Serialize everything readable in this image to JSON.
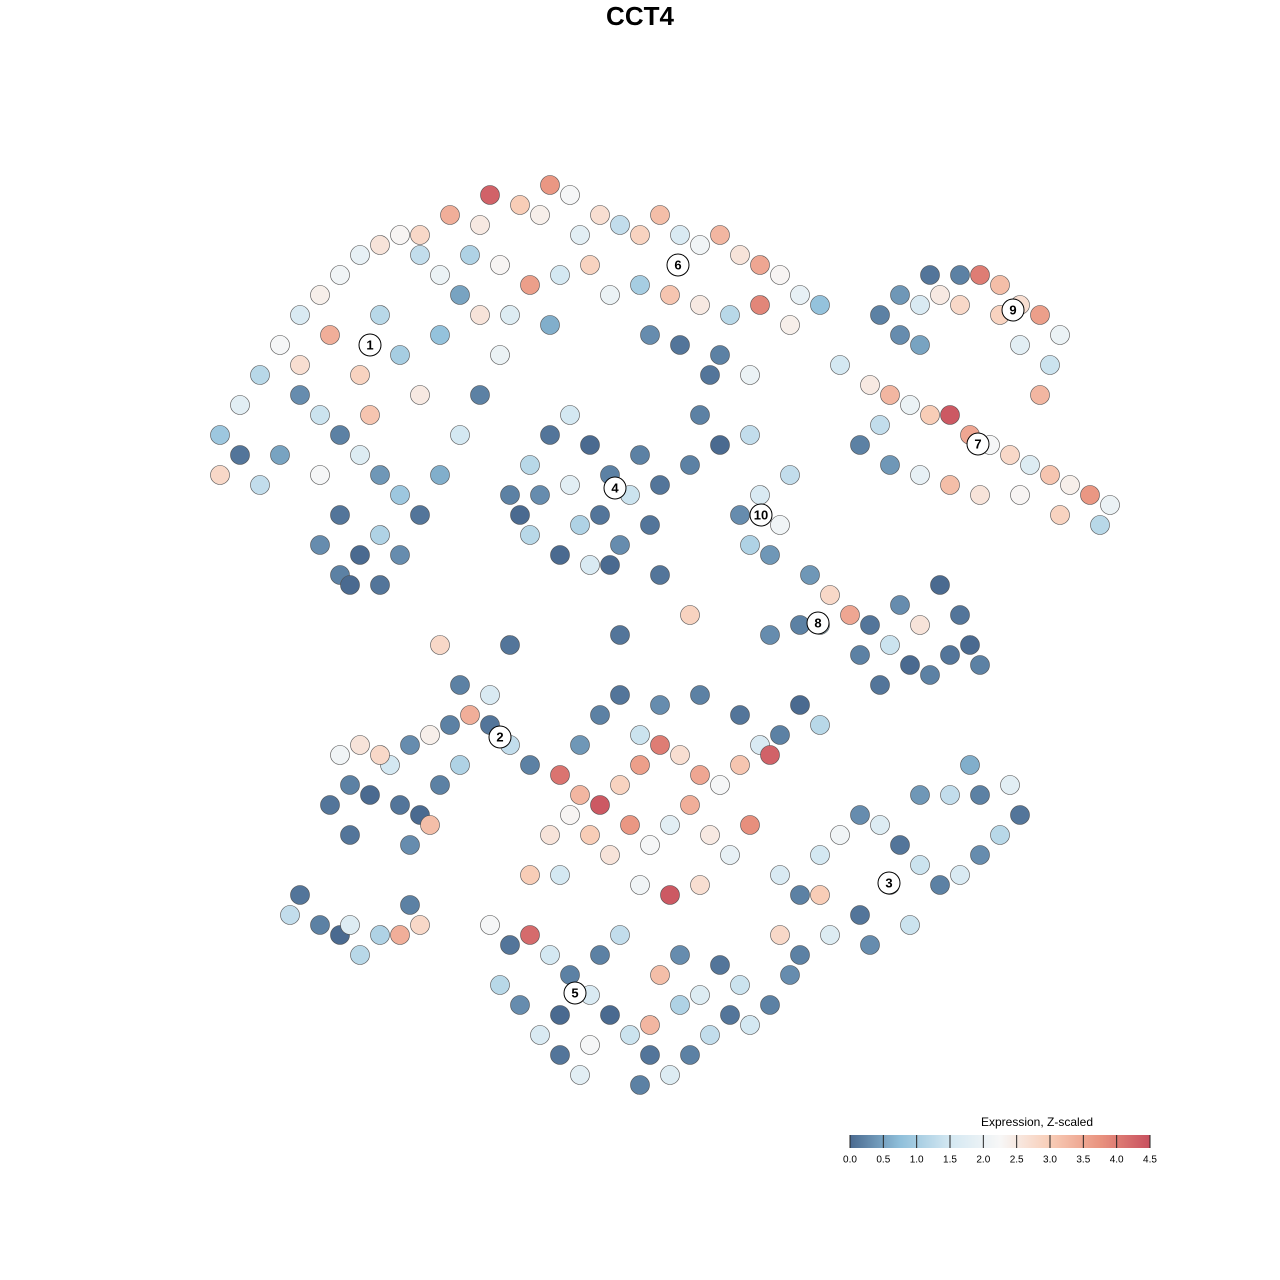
{
  "chart_data": {
    "type": "scatter",
    "title": "CCT4",
    "xlim": [
      0,
      93
    ],
    "ylim": [
      0,
      91.5
    ],
    "x": [
      2,
      4,
      6,
      8,
      10,
      12,
      14,
      16,
      18,
      20,
      22,
      24,
      26,
      10,
      12,
      14,
      16,
      18,
      20,
      22,
      24,
      26,
      28,
      30,
      14,
      12,
      14,
      16,
      18,
      20,
      12,
      8,
      6,
      10,
      16,
      20,
      22,
      18,
      24,
      28,
      2,
      4,
      17,
      13,
      15,
      18,
      22,
      25,
      28,
      29,
      32,
      34,
      35,
      37,
      38,
      40,
      42,
      44,
      46,
      48,
      50,
      52,
      54,
      56,
      58,
      60,
      62,
      30,
      33,
      36,
      39,
      41,
      44,
      47,
      50,
      53,
      56,
      59,
      31,
      35,
      45,
      48,
      52,
      55,
      27,
      31,
      33,
      35,
      37,
      39,
      41,
      43,
      45,
      42,
      39,
      36,
      33,
      34,
      37,
      40,
      44,
      38,
      32,
      46,
      49,
      52,
      55,
      50,
      51,
      54,
      56,
      58,
      55,
      57,
      59,
      68,
      70,
      72,
      74,
      76,
      78,
      80,
      82,
      84,
      86,
      85,
      84,
      70,
      73,
      76,
      80,
      82,
      72,
      64,
      67,
      69,
      71,
      73,
      75,
      77,
      79,
      81,
      83,
      85,
      87,
      89,
      91,
      78,
      75,
      72,
      69,
      66,
      68,
      82,
      86,
      90,
      61,
      63,
      65,
      67,
      69,
      71,
      73,
      75,
      77,
      78,
      70,
      72,
      76,
      62,
      66,
      68,
      74,
      60,
      57,
      24,
      31,
      41,
      42,
      46,
      49,
      13,
      15,
      17,
      19,
      21,
      23,
      25,
      27,
      29,
      31,
      33,
      16,
      18,
      14,
      20,
      22,
      24,
      26,
      21,
      23,
      15,
      26,
      29,
      36,
      38,
      40,
      42,
      44,
      46,
      48,
      50,
      52,
      54,
      56,
      57,
      37,
      39,
      41,
      43,
      45,
      47,
      49,
      51,
      53,
      55,
      47,
      44,
      50,
      40,
      42,
      46,
      50,
      54,
      58,
      60,
      62,
      38,
      44,
      35,
      33,
      36,
      58,
      60,
      62,
      64,
      66,
      68,
      70,
      72,
      74,
      76,
      78,
      80,
      82,
      81,
      78,
      75,
      72,
      69,
      66,
      63,
      60,
      67,
      71,
      62,
      58,
      59,
      77,
      29,
      31,
      33,
      35,
      37,
      39,
      41,
      43,
      45,
      44,
      47,
      49,
      51,
      53,
      55,
      57,
      30,
      32,
      34,
      36,
      38,
      40,
      42,
      46,
      48,
      50,
      52,
      54,
      45,
      39,
      36,
      48,
      9,
      10,
      12,
      14,
      15,
      16,
      18,
      20,
      22,
      21
    ],
    "y": [
      66,
      69,
      72,
      75,
      78,
      80,
      82,
      84,
      85,
      86,
      84,
      82,
      80,
      70,
      68,
      66,
      64,
      62,
      60,
      58,
      62,
      66,
      70,
      74,
      58,
      55,
      52,
      54,
      56,
      54,
      62,
      64,
      61,
      73,
      72,
      74,
      70,
      78,
      76,
      78,
      62,
      64,
      68,
      76,
      51,
      51,
      86,
      88,
      87,
      90,
      89,
      88,
      91,
      90,
      86,
      88,
      87,
      86,
      88,
      86,
      85,
      86,
      84,
      83,
      82,
      80,
      79,
      83,
      81,
      82,
      83,
      80,
      81,
      80,
      79,
      78,
      79,
      77,
      78,
      77,
      76,
      75,
      74,
      72,
      84,
      60,
      63,
      66,
      68,
      65,
      62,
      60,
      57,
      55,
      53,
      54,
      56,
      60,
      61,
      58,
      64,
      57,
      58,
      61,
      63,
      65,
      66,
      68,
      72,
      58,
      60,
      57,
      55,
      54,
      62,
      78,
      80,
      79,
      80,
      79,
      82,
      81,
      79,
      78,
      76,
      73,
      70,
      76,
      82,
      82,
      78,
      75,
      75,
      73,
      71,
      70,
      69,
      68,
      68,
      66,
      65,
      64,
      63,
      62,
      61,
      60,
      59,
      60,
      61,
      62,
      63,
      65,
      67,
      60,
      58,
      57,
      52,
      50,
      48,
      47,
      45,
      43,
      42,
      44,
      45,
      43,
      49,
      47,
      48,
      47,
      44,
      41,
      51,
      47,
      46,
      45,
      45,
      53,
      46,
      52,
      48,
      29,
      31,
      30,
      33,
      35,
      36,
      37,
      38,
      37,
      35,
      33,
      35,
      34,
      34,
      29,
      28,
      31,
      33,
      25,
      27,
      26,
      41,
      40,
      32,
      30,
      29,
      31,
      33,
      35,
      34,
      32,
      31,
      33,
      35,
      34,
      28,
      26,
      24,
      27,
      25,
      27,
      29,
      26,
      24,
      27,
      20,
      21,
      21,
      38,
      40,
      39,
      40,
      38,
      36,
      39,
      37,
      35,
      36,
      26,
      22,
      22,
      22,
      20,
      24,
      26,
      28,
      27,
      25,
      23,
      21,
      22,
      24,
      26,
      28,
      31,
      30,
      30,
      30,
      21,
      18,
      16,
      14,
      15,
      17,
      20,
      16,
      12,
      33,
      17,
      15,
      16,
      14,
      12,
      10,
      8,
      6,
      4,
      1,
      2,
      4,
      6,
      8,
      7,
      9,
      11,
      9,
      6,
      4,
      2,
      14,
      16,
      12,
      14,
      10,
      13,
      11,
      7,
      5,
      8,
      9,
      18,
      20,
      17,
      16,
      17,
      14,
      16,
      16,
      17,
      19
    ],
    "values": [
      0.9,
      1.8,
      1.2,
      2.2,
      1.6,
      2.4,
      2.1,
      1.9,
      2.6,
      2.3,
      1.3,
      2.0,
      0.5,
      0.3,
      1.4,
      0.2,
      1.7,
      0.4,
      0.9,
      0.1,
      0.6,
      1.5,
      0.2,
      2.0,
      0.1,
      0.3,
      0.2,
      0.0,
      1.1,
      0.3,
      2.2,
      0.5,
      1.3,
      2.7,
      2.9,
      1.0,
      2.5,
      1.2,
      0.8,
      2.6,
      2.8,
      0.1,
      3.1,
      3.4,
      0.0,
      0.1,
      2.8,
      3.4,
      2.5,
      4.3,
      3.0,
      2.4,
      3.7,
      2.2,
      1.8,
      2.7,
      1.3,
      2.9,
      3.2,
      1.6,
      2.1,
      3.3,
      2.6,
      3.5,
      2.3,
      1.9,
      0.8,
      2.3,
      3.6,
      1.5,
      2.9,
      2.0,
      1.0,
      3.1,
      2.5,
      1.2,
      3.9,
      2.4,
      1.7,
      0.6,
      0.3,
      0.1,
      0.2,
      2.0,
      1.1,
      0.2,
      1.2,
      0.1,
      1.5,
      0.0,
      0.2,
      1.4,
      0.1,
      0.3,
      1.6,
      0.0,
      1.2,
      0.3,
      1.8,
      0.1,
      0.2,
      1.1,
      0.0,
      0.1,
      0.2,
      0.0,
      1.3,
      0.2,
      0.1,
      0.3,
      1.6,
      2.1,
      1.1,
      0.4,
      1.3,
      0.2,
      0.4,
      1.6,
      2.5,
      2.8,
      4.0,
      3.2,
      2.7,
      3.6,
      2.0,
      1.4,
      3.3,
      0.3,
      0.1,
      0.2,
      2.9,
      1.8,
      0.5,
      1.5,
      2.5,
      3.3,
      2.0,
      3.0,
      4.4,
      3.5,
      2.2,
      2.8,
      1.7,
      3.1,
      2.4,
      3.7,
      2.0,
      2.6,
      3.2,
      1.9,
      0.4,
      0.2,
      1.3,
      2.3,
      2.9,
      1.2,
      0.4,
      2.8,
      3.5,
      0.1,
      1.4,
      0.0,
      0.2,
      0.1,
      0.0,
      0.2,
      0.3,
      2.6,
      0.1,
      1.2,
      0.2,
      0.1,
      0.0,
      0.2,
      0.3,
      2.8,
      0.1,
      0.0,
      0.1,
      0.1,
      2.9,
      0.1,
      0.2,
      0.0,
      1.5,
      0.3,
      2.4,
      0.2,
      3.4,
      0.1,
      1.3,
      0.2,
      2.6,
      2.8,
      2.1,
      0.1,
      0.0,
      0.2,
      1.1,
      0.3,
      3.2,
      0.1,
      0.2,
      1.6,
      4.1,
      3.3,
      4.4,
      2.9,
      3.6,
      4.0,
      2.7,
      3.5,
      2.2,
      3.1,
      1.6,
      4.3,
      2.3,
      3.0,
      2.6,
      3.7,
      2.2,
      1.8,
      3.4,
      2.5,
      1.9,
      3.8,
      4.4,
      2.1,
      2.7,
      0.2,
      0.1,
      0.3,
      0.2,
      0.1,
      0.2,
      0.0,
      1.2,
      0.4,
      1.4,
      2.6,
      3.0,
      1.5,
      1.6,
      0.2,
      1.5,
      2.1,
      0.3,
      1.7,
      0.1,
      1.4,
      0.2,
      1.6,
      0.3,
      1.2,
      0.1,
      1.8,
      0.2,
      1.3,
      0.4,
      1.5,
      0.1,
      1.7,
      0.2,
      0.3,
      1.4,
      3.0,
      2.8,
      0.3,
      0.6,
      2.2,
      0.1,
      4.2,
      1.5,
      0.2,
      1.6,
      0.0,
      1.4,
      0.1,
      0.2,
      1.7,
      0.2,
      1.3,
      0.1,
      1.5,
      0.2,
      1.2,
      0.3,
      1.6,
      0.1,
      1.8,
      0.2,
      1.3,
      3.2,
      0.3,
      1.7,
      0.1,
      1.4,
      3.3,
      2.2,
      0.0,
      1.1,
      1.3,
      0.1,
      0.2,
      0.0,
      1.7,
      1.2,
      1.1,
      3.4,
      2.8,
      0.2
    ],
    "annotations": [
      {
        "text": "1",
        "x": 17,
        "y": 75
      },
      {
        "text": "2",
        "x": 30,
        "y": 35.8
      },
      {
        "text": "3",
        "x": 68.9,
        "y": 21.2
      },
      {
        "text": "4",
        "x": 41.5,
        "y": 60.7
      },
      {
        "text": "5",
        "x": 37.5,
        "y": 10.2
      },
      {
        "text": "6",
        "x": 47.8,
        "y": 83
      },
      {
        "text": "7",
        "x": 77.8,
        "y": 65.1
      },
      {
        "text": "8",
        "x": 61.8,
        "y": 47.2
      },
      {
        "text": "9",
        "x": 81.3,
        "y": 78.5
      },
      {
        "text": "10",
        "x": 56.1,
        "y": 58
      }
    ],
    "colorbar": {
      "title": "Expression, Z-scaled",
      "clim": [
        0,
        4.5
      ],
      "colors": [
        "#4a6a90",
        "#8fbfda",
        "#d4e8f2",
        "#f7f7f7",
        "#f8cdb7",
        "#e9937f",
        "#c8505f"
      ],
      "ticks": [
        {
          "value": 0,
          "label": "0.0"
        },
        {
          "value": 0.5,
          "label": "0.5"
        },
        {
          "value": 1,
          "label": "1.0"
        },
        {
          "value": 1.5,
          "label": "1.5"
        },
        {
          "value": 2,
          "label": "2.0"
        },
        {
          "value": 2.5,
          "label": "2.5"
        },
        {
          "value": 3,
          "label": "3.0"
        },
        {
          "value": 3.5,
          "label": "3.5"
        },
        {
          "value": 4,
          "label": "4.0"
        },
        {
          "value": 4.5,
          "label": "4.5"
        }
      ]
    }
  }
}
